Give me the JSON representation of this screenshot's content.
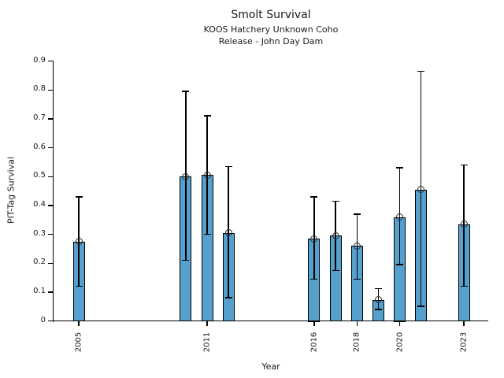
{
  "chart_data": {
    "type": "bar",
    "title": "Smolt Survival",
    "subtitle_line1": "KOOS Hatchery Unknown Coho",
    "subtitle_line2": "Release - John Day Dam",
    "xlabel": "Year",
    "ylabel": "PIT-Tag Survival",
    "ylim": [
      0,
      0.9
    ],
    "yticks": [
      0,
      0.1,
      0.2,
      0.3,
      0.4,
      0.5,
      0.6,
      0.7,
      0.8,
      0.9
    ],
    "xticks": [
      2005,
      2011,
      2016,
      2018,
      2020,
      2023
    ],
    "xlim": [
      2003.8,
      2024.1
    ],
    "grid": false,
    "legend": "none",
    "bar_color": "#56A0CE",
    "bar_edge_color": "#000000",
    "error_bar_color": "#000000",
    "marker": "open-circle",
    "series": [
      {
        "year": 2005,
        "value": 0.275,
        "ci_low": 0.12,
        "ci_high": 0.43
      },
      {
        "year": 2010,
        "value": 0.5,
        "ci_low": 0.21,
        "ci_high": 0.795
      },
      {
        "year": 2011,
        "value": 0.505,
        "ci_low": 0.3,
        "ci_high": 0.71
      },
      {
        "year": 2012,
        "value": 0.305,
        "ci_low": 0.08,
        "ci_high": 0.535
      },
      {
        "year": 2016,
        "value": 0.285,
        "ci_low": 0.145,
        "ci_high": 0.43
      },
      {
        "year": 2017,
        "value": 0.295,
        "ci_low": 0.175,
        "ci_high": 0.415
      },
      {
        "year": 2018,
        "value": 0.26,
        "ci_low": 0.145,
        "ci_high": 0.37
      },
      {
        "year": 2019,
        "value": 0.073,
        "ci_low": 0.04,
        "ci_high": 0.112
      },
      {
        "year": 2020,
        "value": 0.36,
        "ci_low": 0.195,
        "ci_high": 0.53
      },
      {
        "year": 2021,
        "value": 0.455,
        "ci_low": 0.05,
        "ci_high": 0.865
      },
      {
        "year": 2023,
        "value": 0.335,
        "ci_low": 0.12,
        "ci_high": 0.54
      }
    ]
  }
}
